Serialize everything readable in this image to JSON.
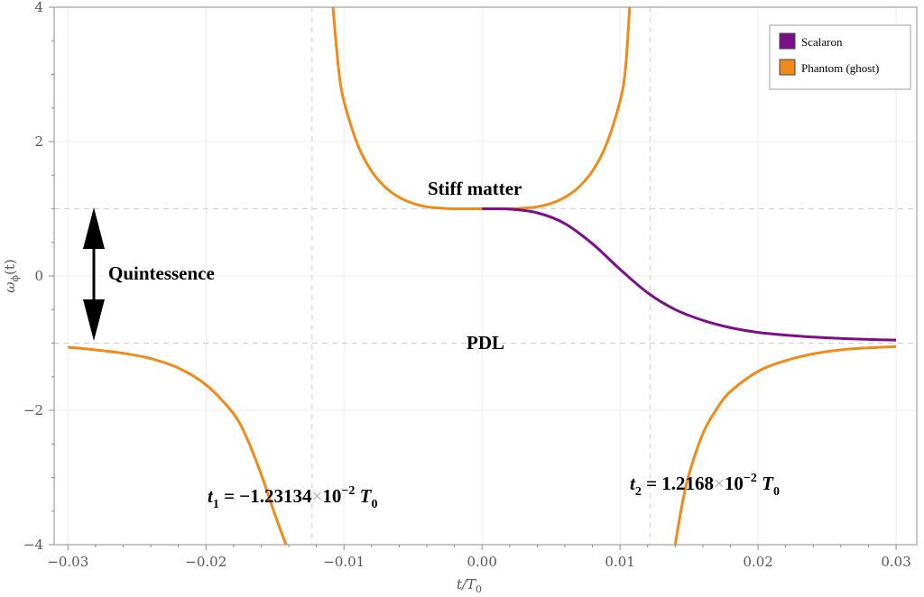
{
  "chart_data": {
    "type": "line",
    "xlabel": "t/T",
    "xlabel_sub": "0",
    "ylabel": "ω",
    "ylabel_sub": "ϕ",
    "ylabel_arg": "(t)",
    "xlim": [
      -0.031,
      0.0315
    ],
    "ylim": [
      -4,
      4
    ],
    "xticks": [
      -0.03,
      -0.02,
      -0.01,
      0.0,
      0.01,
      0.02,
      0.03
    ],
    "xtick_labels": [
      "−0.03",
      "−0.02",
      "−0.01",
      "0.00",
      "0.01",
      "0.02",
      "0.03"
    ],
    "yticks": [
      -4,
      -2,
      0,
      2,
      4
    ],
    "ytick_labels": [
      "−4",
      "−2",
      "0",
      "2",
      "4"
    ],
    "reference_lines": {
      "horizontal": [
        1,
        -1
      ],
      "vertical": [
        -0.0123134,
        0.012168
      ]
    },
    "legend": {
      "position": "top-right",
      "entries": [
        {
          "label": "Scalaron",
          "color": "#7b0f8a"
        },
        {
          "label": "Phantom (ghost)",
          "color": "#f08a1a"
        }
      ]
    },
    "series": [
      {
        "name": "Scalaron",
        "color": "#7b0f8a",
        "points": [
          [
            0.0,
            1.0
          ],
          [
            0.002,
            0.995
          ],
          [
            0.004,
            0.94
          ],
          [
            0.006,
            0.78
          ],
          [
            0.008,
            0.48
          ],
          [
            0.01,
            0.1
          ],
          [
            0.012,
            -0.25
          ],
          [
            0.014,
            -0.5
          ],
          [
            0.016,
            -0.66
          ],
          [
            0.018,
            -0.77
          ],
          [
            0.02,
            -0.84
          ],
          [
            0.022,
            -0.88
          ],
          [
            0.024,
            -0.91
          ],
          [
            0.026,
            -0.93
          ],
          [
            0.028,
            -0.945
          ],
          [
            0.03,
            -0.955
          ]
        ]
      },
      {
        "name": "Phantom (ghost)",
        "color": "#f08a1a",
        "segments": [
          [
            [
              -0.03,
              -1.06
            ],
            [
              -0.028,
              -1.1
            ],
            [
              -0.026,
              -1.15
            ],
            [
              -0.024,
              -1.23
            ],
            [
              -0.022,
              -1.37
            ],
            [
              -0.02,
              -1.62
            ],
            [
              -0.018,
              -2.05
            ],
            [
              -0.017,
              -2.43
            ],
            [
              -0.016,
              -2.95
            ],
            [
              -0.015,
              -3.55
            ],
            [
              -0.0142,
              -4.0
            ]
          ],
          [
            [
              -0.0108,
              4.0
            ],
            [
              -0.0104,
              3.1
            ],
            [
              -0.01,
              2.6
            ],
            [
              -0.009,
              1.95
            ],
            [
              -0.008,
              1.56
            ],
            [
              -0.007,
              1.32
            ],
            [
              -0.006,
              1.17
            ],
            [
              -0.005,
              1.08
            ],
            [
              -0.004,
              1.03
            ],
            [
              -0.003,
              1.01
            ],
            [
              -0.002,
              1.0
            ],
            [
              0.0,
              1.0
            ]
          ],
          [
            [
              0.0,
              1.0
            ],
            [
              0.002,
              1.0
            ],
            [
              0.003,
              1.01
            ],
            [
              0.004,
              1.03
            ],
            [
              0.005,
              1.08
            ],
            [
              0.006,
              1.17
            ],
            [
              0.007,
              1.32
            ],
            [
              0.008,
              1.56
            ],
            [
              0.009,
              1.95
            ],
            [
              0.01,
              2.6
            ],
            [
              0.0104,
              3.1
            ],
            [
              0.0107,
              4.0
            ]
          ],
          [
            [
              0.014,
              -4.0
            ],
            [
              0.0145,
              -3.4
            ],
            [
              0.015,
              -2.95
            ],
            [
              0.016,
              -2.35
            ],
            [
              0.017,
              -1.98
            ],
            [
              0.018,
              -1.72
            ],
            [
              0.02,
              -1.42
            ],
            [
              0.022,
              -1.26
            ],
            [
              0.024,
              -1.16
            ],
            [
              0.026,
              -1.1
            ],
            [
              0.028,
              -1.07
            ],
            [
              0.03,
              -1.05
            ]
          ]
        ]
      }
    ],
    "annotations": {
      "stiff": "Stiff matter",
      "quint": "Quintessence",
      "pdl": "PDL",
      "t1_var": "t",
      "t1_sub": "1",
      "t1_eq": " = −1.23134",
      "t1_times": "×",
      "t1_pow": "10",
      "t1_exp": "−2",
      "t1_unit": " T",
      "t1_unit_sub": "0",
      "t2_var": "t",
      "t2_sub": "2",
      "t2_eq": " = 1.2168",
      "t2_times": "×",
      "t2_pow": "10",
      "t2_exp": "−2",
      "t2_unit": " T",
      "t2_unit_sub": "0"
    }
  }
}
